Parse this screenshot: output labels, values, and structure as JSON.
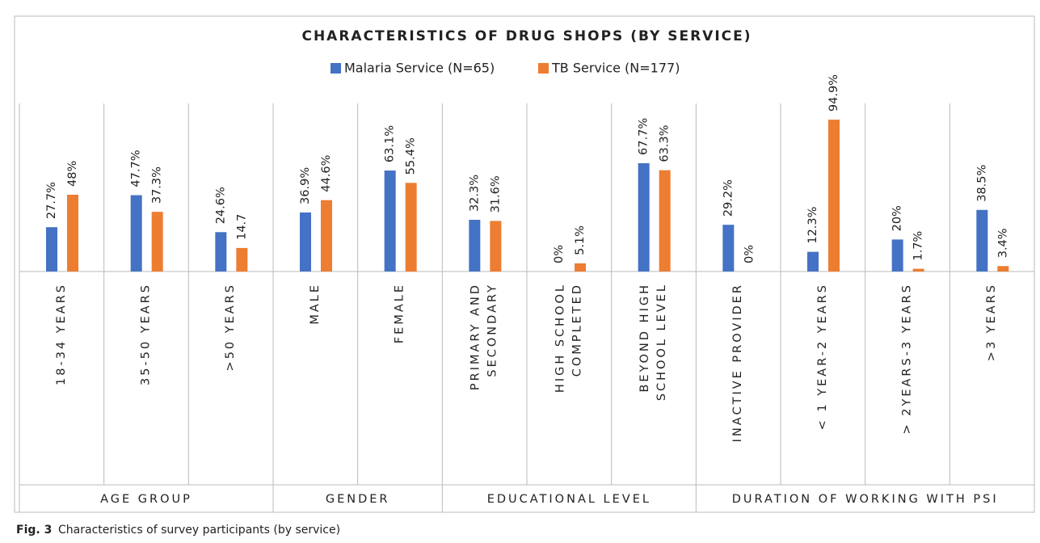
{
  "chart_data": {
    "type": "bar",
    "title": "CHARACTERISTICS OF DRUG SHOPS  (BY SERVICE)",
    "categories": [
      "18-34 YEARS",
      "35-50 YEARS",
      ">50 YEARS",
      "MALE",
      "FEMALE",
      "PRIMARY AND\nSECONDARY",
      "HIGH SCHOOL\nCOMPLETED",
      "BEYOND HIGH\nSCHOOL LEVEL",
      "INACTIVE PROVIDER",
      "< 1 YEAR-2 YEARS",
      "> 2YEARS-3 YEARS",
      ">3 YEARS"
    ],
    "groups": [
      {
        "name": "AGE GROUP",
        "size": 3
      },
      {
        "name": "GENDER",
        "size": 2
      },
      {
        "name": "EDUCATIONAL LEVEL",
        "size": 3
      },
      {
        "name": "DURATION OF WORKING WITH PSI",
        "size": 4
      }
    ],
    "series": [
      {
        "name": "Malaria Service (N=65)",
        "color": "#4472c4",
        "values": [
          27.7,
          47.7,
          24.6,
          36.9,
          63.1,
          32.3,
          0,
          67.7,
          29.2,
          12.3,
          20,
          38.5
        ],
        "value_labels": [
          "27.7%",
          "47.7%",
          "24.6%",
          "36.9%",
          "63.1%",
          "32.3%",
          "0%",
          "67.7%",
          "29.2%",
          "12.3%",
          "20%",
          "38.5%"
        ]
      },
      {
        "name": "TB Service (N=177)",
        "color": "#ed7d31",
        "values": [
          48,
          37.3,
          14.7,
          44.6,
          55.4,
          31.6,
          5.1,
          63.3,
          0,
          94.9,
          1.7,
          3.4
        ],
        "value_labels": [
          "48%",
          "37.3%",
          "14.7",
          "44.6%",
          "55.4%",
          "31.6%",
          "5.1%",
          "63.3%",
          "0%",
          "94.9%",
          "1.7%",
          "3.4%"
        ]
      }
    ],
    "ylim": [
      0,
      100
    ],
    "legend": "top"
  },
  "caption": {
    "label": "Fig. 3",
    "text": "Characteristics of survey participants (by service)"
  }
}
